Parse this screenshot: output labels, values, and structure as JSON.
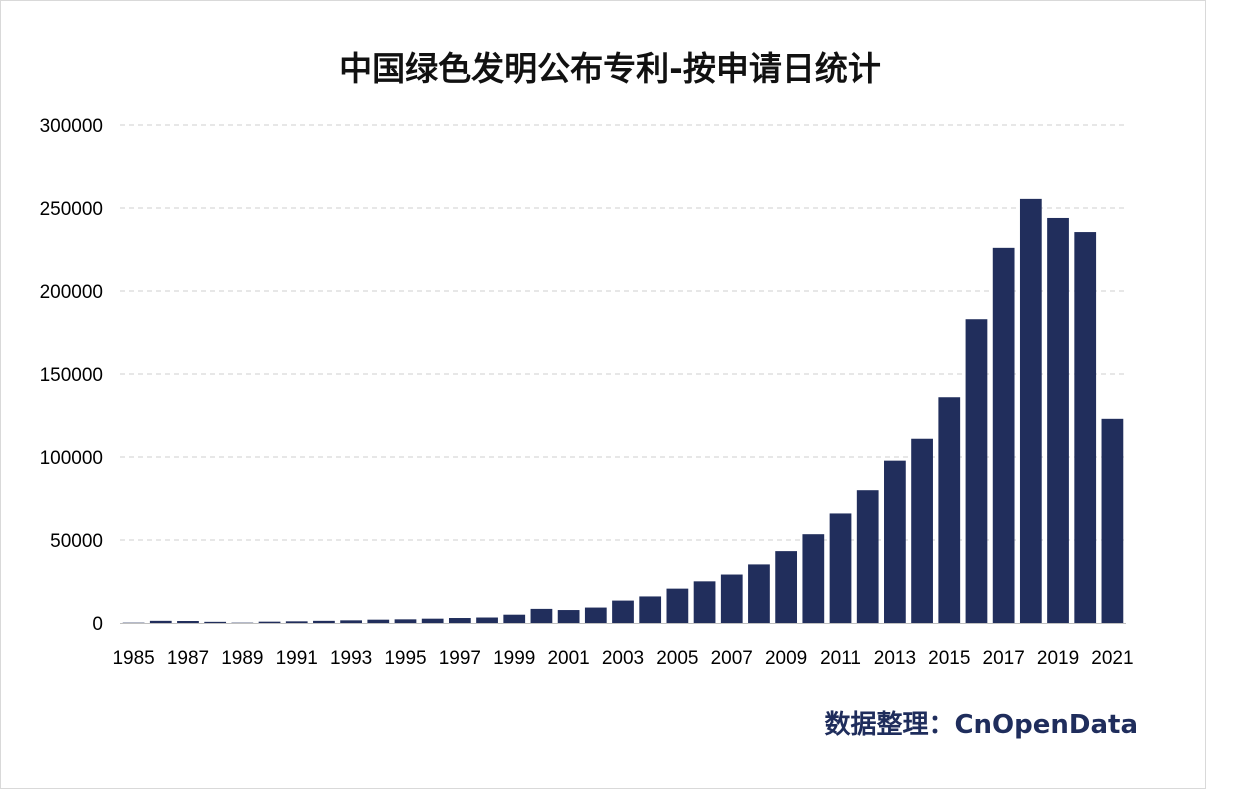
{
  "chart_data": {
    "type": "bar",
    "title": "中国绿色发明公布专利-按申请日统计",
    "xlabel": "",
    "ylabel": "",
    "ylim": [
      0,
      300000
    ],
    "yticks": [
      0,
      50000,
      100000,
      150000,
      200000,
      250000,
      300000
    ],
    "grid": true,
    "bar_color": "#212e5c",
    "categories": [
      "1985",
      "1986",
      "1987",
      "1988",
      "1989",
      "1990",
      "1991",
      "1992",
      "1993",
      "1994",
      "1995",
      "1996",
      "1997",
      "1998",
      "1999",
      "2000",
      "2001",
      "2002",
      "2003",
      "2004",
      "2005",
      "2006",
      "2007",
      "2008",
      "2009",
      "2010",
      "2011",
      "2012",
      "2013",
      "2014",
      "2015",
      "2016",
      "2017",
      "2018",
      "2019",
      "2020",
      "2021"
    ],
    "tick_labels": [
      "1985",
      "1987",
      "1989",
      "1991",
      "1993",
      "1995",
      "1997",
      "1999",
      "2001",
      "2003",
      "2005",
      "2007",
      "2009",
      "2011",
      "2013",
      "2015",
      "2017",
      "2019",
      "2021"
    ],
    "values": [
      200,
      1300,
      1200,
      700,
      200,
      800,
      1000,
      1300,
      1600,
      2000,
      2200,
      2600,
      3000,
      3300,
      5000,
      8500,
      7800,
      9300,
      13500,
      16000,
      20700,
      25100,
      29200,
      35300,
      43300,
      53500,
      66000,
      80000,
      97800,
      111000,
      136000,
      183000,
      226000,
      255500,
      244000,
      235500,
      123000
    ]
  },
  "source_text": "数据整理：CnOpenData"
}
